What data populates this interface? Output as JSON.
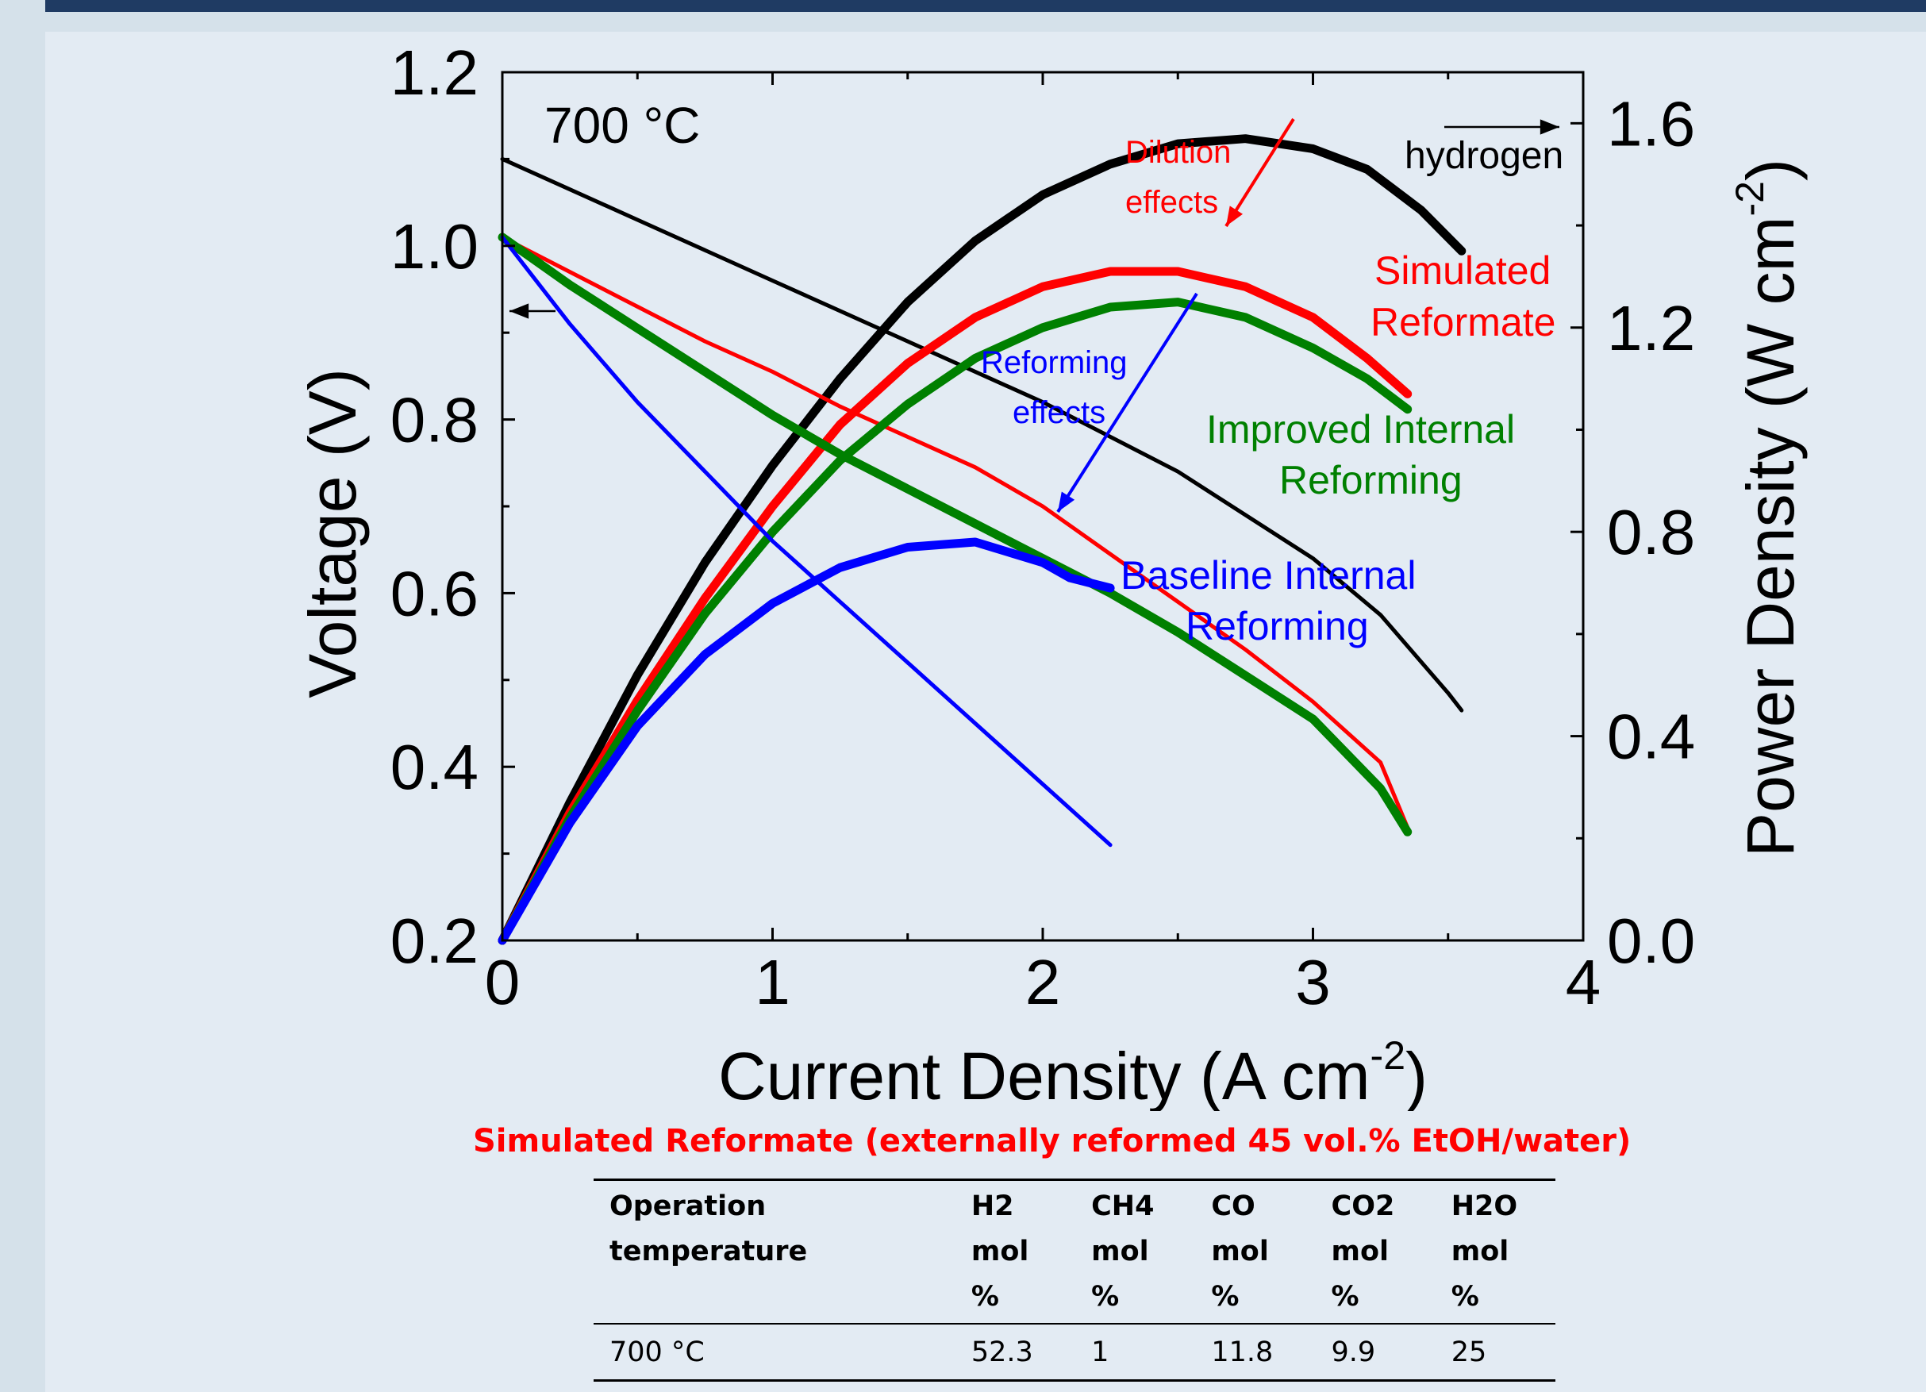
{
  "chart_data": {
    "type": "line",
    "annotation_temperature": "700 °C",
    "xlabel": "Current Density (A cm",
    "xlabel_sup": "-2",
    "xlabel_end": ")",
    "ylabel_left": "Voltage (V)",
    "ylabel_right": "Power Density (W cm",
    "ylabel_right_sup": "-2",
    "ylabel_right_end": ")",
    "xlim": [
      0,
      4
    ],
    "ylim_left": [
      0.2,
      1.2
    ],
    "ylim_right": [
      0.0,
      1.7
    ],
    "x_ticks": [
      "0",
      "1",
      "2",
      "3",
      "4"
    ],
    "y_left_ticks": [
      "0.2",
      "0.4",
      "0.6",
      "0.8",
      "1.0",
      "1.2"
    ],
    "y_right_ticks": [
      "0.0",
      "0.4",
      "0.8",
      "1.2",
      "1.6"
    ],
    "grid": false,
    "colors": {
      "hydrogen": "#000000",
      "simulated": "#ff0000",
      "improved": "#008000",
      "baseline": "#0000ff"
    },
    "series": [
      {
        "key": "hydrogen",
        "axis": "left",
        "style": "thin",
        "x": [
          0,
          0.5,
          1,
          1.5,
          2,
          2.5,
          3,
          3.25,
          3.5,
          3.55
        ],
        "y": [
          1.1,
          1.03,
          0.96,
          0.89,
          0.82,
          0.74,
          0.64,
          0.575,
          0.485,
          0.465
        ]
      },
      {
        "key": "hydrogen",
        "axis": "right",
        "style": "thick",
        "x": [
          0,
          0.25,
          0.5,
          0.75,
          1,
          1.25,
          1.5,
          1.75,
          2,
          2.25,
          2.5,
          2.75,
          3,
          3.2,
          3.4,
          3.55
        ],
        "y": [
          0,
          0.27,
          0.52,
          0.74,
          0.93,
          1.1,
          1.25,
          1.37,
          1.46,
          1.52,
          1.56,
          1.57,
          1.55,
          1.51,
          1.43,
          1.35
        ]
      },
      {
        "key": "simulated",
        "axis": "left",
        "style": "thin",
        "x": [
          0,
          0.25,
          0.5,
          0.75,
          1,
          1.25,
          1.5,
          1.75,
          2,
          2.25,
          2.5,
          2.75,
          3,
          3.25,
          3.35
        ],
        "y": [
          1.01,
          0.97,
          0.93,
          0.89,
          0.855,
          0.815,
          0.78,
          0.745,
          0.7,
          0.645,
          0.59,
          0.535,
          0.475,
          0.405,
          0.33
        ]
      },
      {
        "key": "simulated",
        "axis": "right",
        "style": "thick",
        "x": [
          0,
          0.25,
          0.5,
          0.75,
          1,
          1.25,
          1.5,
          1.75,
          2,
          2.25,
          2.5,
          2.75,
          3,
          3.2,
          3.35
        ],
        "y": [
          0,
          0.25,
          0.47,
          0.67,
          0.85,
          1.01,
          1.13,
          1.22,
          1.28,
          1.31,
          1.31,
          1.28,
          1.22,
          1.14,
          1.07
        ]
      },
      {
        "key": "improved",
        "axis": "left",
        "style": "thick",
        "x": [
          0,
          0.25,
          0.5,
          0.75,
          1,
          1.25,
          1.5,
          1.75,
          2,
          2.25,
          2.5,
          2.75,
          3,
          3.25,
          3.35
        ],
        "y": [
          1.01,
          0.955,
          0.905,
          0.855,
          0.805,
          0.76,
          0.72,
          0.68,
          0.64,
          0.6,
          0.555,
          0.505,
          0.455,
          0.375,
          0.325
        ]
      },
      {
        "key": "improved",
        "axis": "right",
        "style": "thick",
        "x": [
          0,
          0.25,
          0.5,
          0.75,
          1,
          1.25,
          1.5,
          1.75,
          2,
          2.25,
          2.5,
          2.75,
          3,
          3.2,
          3.35
        ],
        "y": [
          0,
          0.24,
          0.45,
          0.64,
          0.8,
          0.94,
          1.05,
          1.14,
          1.2,
          1.24,
          1.25,
          1.22,
          1.16,
          1.1,
          1.04
        ]
      },
      {
        "key": "baseline",
        "axis": "left",
        "style": "thin",
        "x": [
          0,
          0.25,
          0.5,
          0.75,
          1,
          1.25,
          1.5,
          1.75,
          2,
          2.25
        ],
        "y": [
          1.01,
          0.91,
          0.82,
          0.74,
          0.66,
          0.59,
          0.52,
          0.45,
          0.38,
          0.31
        ]
      },
      {
        "key": "baseline",
        "axis": "right",
        "style": "thick",
        "x": [
          0,
          0.25,
          0.5,
          0.75,
          1,
          1.25,
          1.5,
          1.75,
          2,
          2.1,
          2.25
        ],
        "y": [
          0,
          0.23,
          0.42,
          0.56,
          0.66,
          0.73,
          0.77,
          0.78,
          0.74,
          0.71,
          0.69
        ]
      }
    ],
    "labels": {
      "hydrogen": "hydrogen",
      "dilution_line1": "Dilution",
      "dilution_line2": "effects",
      "simulated_line1": "Simulated",
      "simulated_line2": "Reformate",
      "reforming_line1": "Reforming",
      "reforming_line2": "effects",
      "improved_line1": "Improved Internal",
      "improved_line2": "Reforming",
      "baseline_line1": "Baseline Internal",
      "baseline_line2": "Reforming"
    }
  },
  "caption": "Simulated Reformate (externally reformed 45 vol.% EtOH/water)",
  "table": {
    "headers": [
      [
        "Operation",
        "temperature"
      ],
      [
        "H2",
        "mol",
        "%"
      ],
      [
        "CH4",
        "mol",
        "%"
      ],
      [
        "CO",
        "mol",
        "%"
      ],
      [
        "CO2",
        "mol",
        "%"
      ],
      [
        "H2O",
        "mol",
        "%"
      ]
    ],
    "rows": [
      [
        "700 °C",
        "52.3",
        "1",
        "11.8",
        "9.9",
        "25"
      ]
    ]
  }
}
